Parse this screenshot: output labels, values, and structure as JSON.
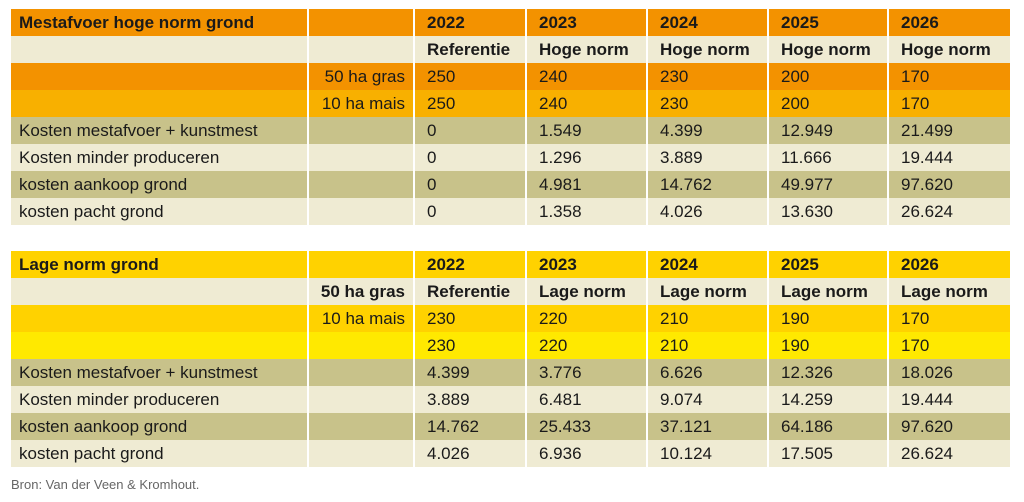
{
  "colors": {
    "orange_dark": "#F39200",
    "orange_light": "#F8B000",
    "cream": "#EFEBD3",
    "olive": "#C8C28A",
    "yellow_dark": "#FFD200",
    "yellow_light": "#FFE900"
  },
  "tables": [
    {
      "rows": [
        {
          "style": "header",
          "bg": "#F39200",
          "cells": [
            "Mestafvoer hoge norm grond",
            "",
            "2022",
            "2023",
            "2024",
            "2025",
            "2026"
          ]
        },
        {
          "style": "subheader",
          "bg": "#EFEBD3",
          "cells": [
            "",
            "",
            "Referentie",
            "Hoge norm",
            "Hoge norm",
            "Hoge norm",
            "Hoge norm"
          ]
        },
        {
          "style": "normal",
          "bg": "#F39200",
          "cells": [
            "",
            "50 ha gras",
            "250",
            "240",
            "230",
            "200",
            "170"
          ]
        },
        {
          "style": "normal",
          "bg": "#F8B000",
          "cells": [
            "",
            "10 ha mais",
            "250",
            "240",
            "230",
            "200",
            "170"
          ]
        },
        {
          "style": "normal",
          "bg": "#C8C28A",
          "cells": [
            "Kosten mestafvoer + kunstmest",
            "",
            "0",
            "1.549",
            "4.399",
            "12.949",
            "21.499"
          ]
        },
        {
          "style": "normal",
          "bg": "#EFEBD3",
          "cells": [
            "Kosten minder produceren",
            "",
            "0",
            "1.296",
            "3.889",
            "11.666",
            "19.444"
          ]
        },
        {
          "style": "normal",
          "bg": "#C8C28A",
          "cells": [
            "kosten aankoop grond",
            "",
            "0",
            "4.981",
            "14.762",
            "49.977",
            "97.620"
          ]
        },
        {
          "style": "normal",
          "bg": "#EFEBD3",
          "cells": [
            "kosten pacht grond",
            "",
            "0",
            "1.358",
            "4.026",
            "13.630",
            "26.624"
          ]
        }
      ]
    },
    {
      "rows": [
        {
          "style": "header",
          "bg": "#FFD200",
          "cells": [
            "Lage norm grond",
            "",
            "2022",
            "2023",
            "2024",
            "2025",
            "2026"
          ]
        },
        {
          "style": "subheader",
          "bg": "#EFEBD3",
          "cells": [
            "",
            "50 ha gras",
            "Referentie",
            "Lage norm",
            "Lage norm",
            "Lage norm",
            "Lage norm"
          ]
        },
        {
          "style": "normal",
          "bg": "#FFD200",
          "cells": [
            "",
            "10 ha mais",
            "230",
            "220",
            "210",
            "190",
            "170"
          ]
        },
        {
          "style": "normal",
          "bg": "#FFE900",
          "cells": [
            "",
            "",
            "230",
            "220",
            "210",
            "190",
            "170"
          ]
        },
        {
          "style": "normal",
          "bg": "#C8C28A",
          "cells": [
            "Kosten mestafvoer + kunstmest",
            "",
            "4.399",
            "3.776",
            "6.626",
            "12.326",
            "18.026"
          ]
        },
        {
          "style": "normal",
          "bg": "#EFEBD3",
          "cells": [
            "Kosten minder produceren",
            "",
            "3.889",
            "6.481",
            "9.074",
            "14.259",
            "19.444"
          ]
        },
        {
          "style": "normal",
          "bg": "#C8C28A",
          "cells": [
            "kosten aankoop grond",
            "",
            "14.762",
            "25.433",
            "37.121",
            "64.186",
            "97.620"
          ]
        },
        {
          "style": "normal",
          "bg": "#EFEBD3",
          "cells": [
            "kosten pacht grond",
            "",
            "4.026",
            "6.936",
            "10.124",
            "17.505",
            "26.624"
          ]
        }
      ]
    }
  ],
  "source": "Bron: Van der Veen & Kromhout."
}
